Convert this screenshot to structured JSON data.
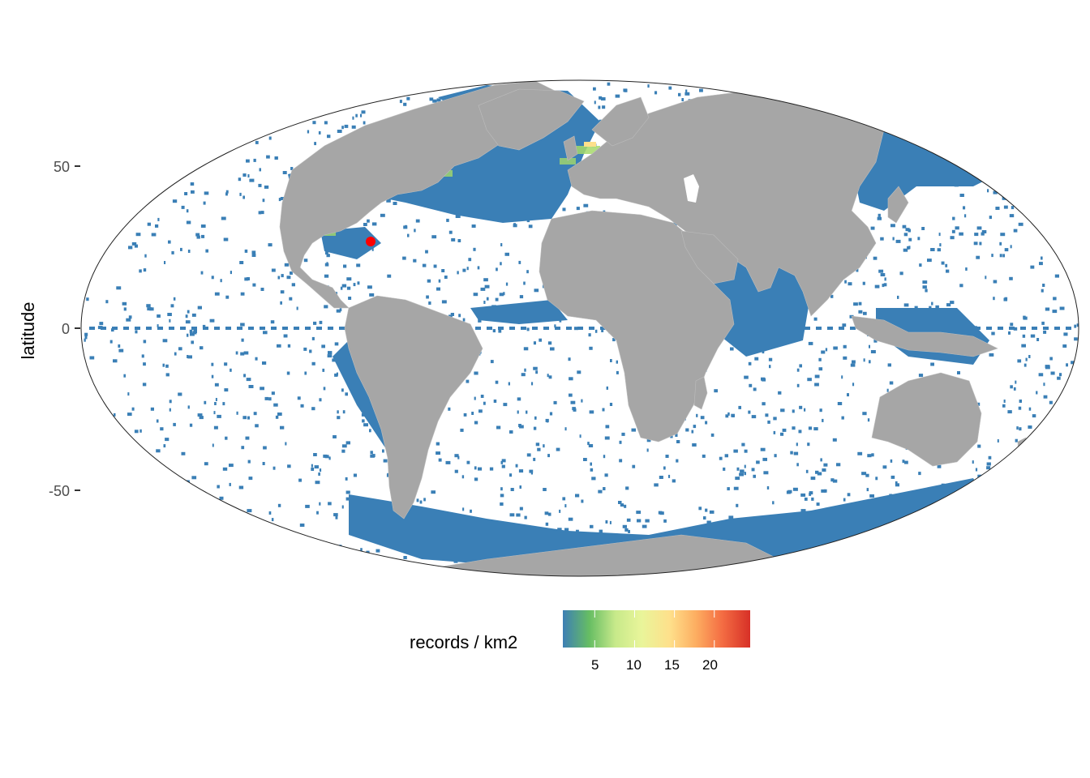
{
  "map": {
    "projection": "mollweide",
    "y_axis_label": "latitude",
    "y_ticks": [
      {
        "value": 50,
        "label": "50"
      },
      {
        "value": 0,
        "label": "0"
      },
      {
        "value": -50,
        "label": "-50"
      }
    ],
    "land_color": "#a6a6a6",
    "ocean_cell_color": "#3a7fb6",
    "highlight_point": {
      "lon": -78,
      "lat": 27,
      "color": "#ff0000"
    }
  },
  "legend": {
    "title": "records / km2",
    "ticks": [
      "5",
      "10",
      "15",
      "20"
    ],
    "range": [
      1,
      24.5
    ],
    "tick_values": [
      5,
      10,
      15,
      20
    ],
    "colors": [
      "#3d7fb5",
      "#66bd63",
      "#c7e98a",
      "#e9f59a",
      "#fee08b",
      "#fdae61",
      "#f46d43",
      "#d73027"
    ]
  }
}
